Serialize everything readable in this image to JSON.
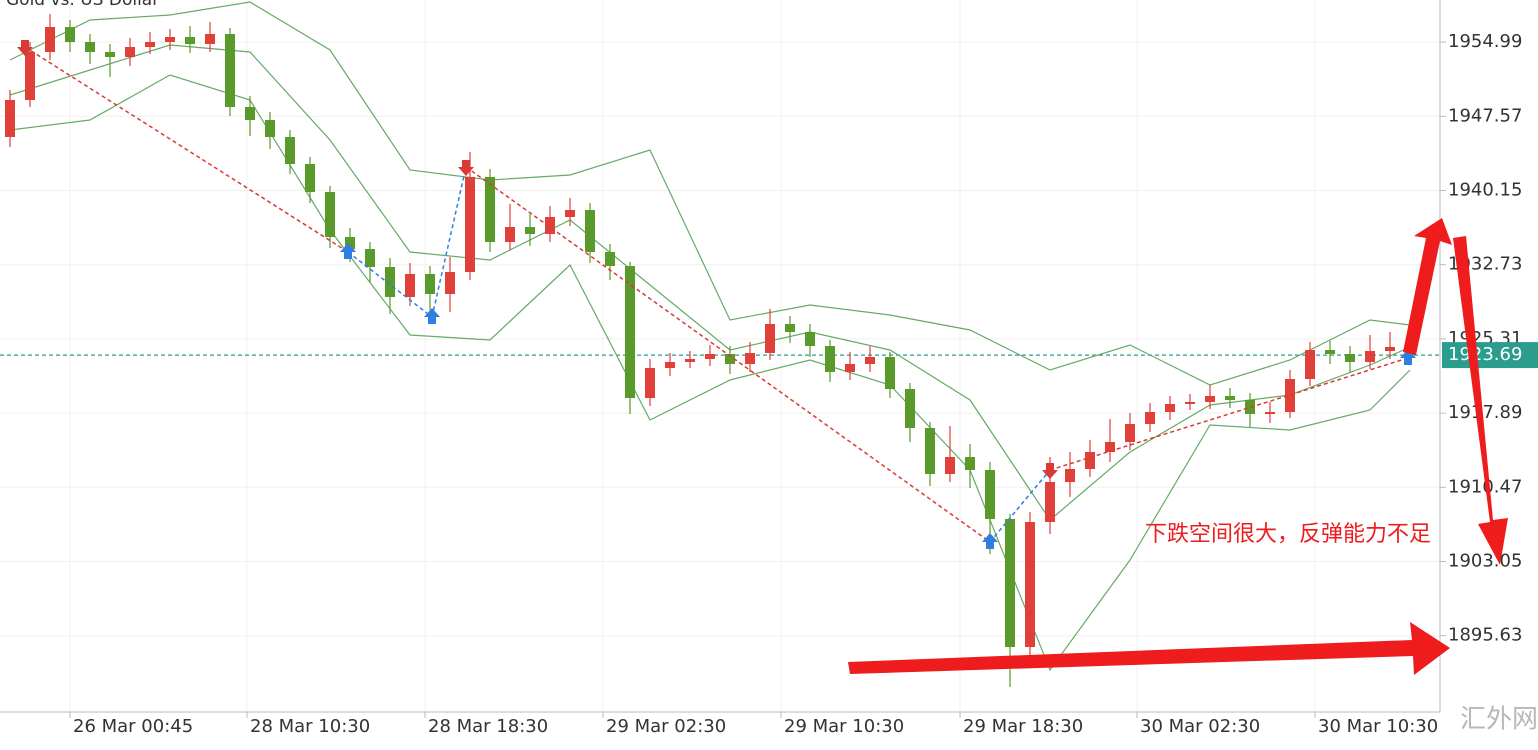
{
  "chart_data": {
    "type": "candlestick",
    "title": "Gold vs. US Dollar",
    "x": [
      0,
      1,
      2,
      3,
      4,
      5,
      6,
      7,
      8,
      9,
      10,
      11,
      12,
      13,
      14,
      15,
      16,
      17,
      18,
      19,
      20,
      21,
      22,
      23,
      24,
      25,
      26,
      27,
      28,
      29,
      30,
      31,
      32,
      33,
      34,
      35,
      36,
      37,
      38,
      39,
      40,
      41,
      42,
      43,
      44,
      45,
      46,
      47,
      48,
      49,
      50,
      51,
      52,
      53,
      54,
      55,
      56,
      57,
      58,
      59,
      60,
      61,
      62,
      63,
      64,
      65,
      66,
      67,
      68,
      69,
      70
    ],
    "open": [
      1945.5,
      1949.2,
      1954.0,
      1956.5,
      1955.0,
      1954.0,
      1953.5,
      1954.5,
      1955.0,
      1955.5,
      1954.8,
      1955.8,
      1948.5,
      1947.2,
      1945.5,
      1942.8,
      1940.0,
      1935.5,
      1934.3,
      1932.5,
      1929.5,
      1931.8,
      1929.8,
      1932.0,
      1941.5,
      1935.0,
      1936.5,
      1935.8,
      1937.5,
      1938.2,
      1934.0,
      1932.6,
      1919.4,
      1922.4,
      1923.0,
      1923.3,
      1923.8,
      1922.8,
      1923.9,
      1926.8,
      1926.0,
      1924.6,
      1922.0,
      1922.8,
      1923.5,
      1920.3,
      1916.4,
      1911.8,
      1913.5,
      1912.2,
      1907.3,
      1894.5,
      1907.0,
      1911.0,
      1912.3,
      1914.0,
      1915.0,
      1916.8,
      1918.0,
      1918.8,
      1919.0,
      1919.6,
      1919.2,
      1917.8,
      1918.0,
      1921.3,
      1924.2,
      1923.8,
      1923.0,
      1924.1,
      1924.5
    ],
    "high": [
      1950.2,
      1955.0,
      1957.8,
      1957.2,
      1955.8,
      1954.8,
      1955.4,
      1956.0,
      1956.3,
      1956.6,
      1957.0,
      1956.4,
      1949.6,
      1948.0,
      1946.2,
      1943.5,
      1940.6,
      1936.4,
      1935.0,
      1933.4,
      1932.9,
      1932.6,
      1933.5,
      1944.0,
      1942.3,
      1938.8,
      1937.8,
      1938.6,
      1939.4,
      1938.9,
      1934.8,
      1933.0,
      1923.3,
      1923.9,
      1924.1,
      1924.7,
      1924.6,
      1925.0,
      1928.3,
      1927.6,
      1926.8,
      1925.2,
      1924.0,
      1924.6,
      1924.0,
      1920.9,
      1917.0,
      1916.6,
      1914.8,
      1913.0,
      1907.8,
      1908.0,
      1913.5,
      1914.0,
      1915.2,
      1917.3,
      1917.9,
      1918.9,
      1919.6,
      1919.8,
      1920.7,
      1920.4,
      1919.9,
      1919.0,
      1922.2,
      1925.0,
      1925.1,
      1924.6,
      1925.7,
      1926.0,
      1927.0
    ],
    "low": [
      1944.5,
      1948.5,
      1953.2,
      1954.0,
      1952.8,
      1951.5,
      1952.6,
      1953.8,
      1954.2,
      1953.9,
      1954.0,
      1947.6,
      1945.6,
      1944.3,
      1941.8,
      1938.9,
      1934.4,
      1933.0,
      1930.9,
      1927.8,
      1928.6,
      1928.2,
      1928.0,
      1931.2,
      1934.0,
      1934.2,
      1934.6,
      1935.0,
      1936.6,
      1932.9,
      1931.2,
      1917.8,
      1918.6,
      1921.6,
      1922.4,
      1922.6,
      1921.8,
      1922.0,
      1923.2,
      1924.9,
      1923.5,
      1921.0,
      1921.2,
      1922.0,
      1919.4,
      1915.0,
      1910.6,
      1911.0,
      1910.4,
      1903.8,
      1890.5,
      1893.0,
      1905.8,
      1909.5,
      1911.5,
      1913.0,
      1914.2,
      1916.0,
      1917.2,
      1918.2,
      1918.3,
      1918.4,
      1916.5,
      1916.9,
      1917.4,
      1920.6,
      1922.8,
      1921.9,
      1922.3,
      1923.3,
      1923.0
    ],
    "close": [
      1949.2,
      1954.0,
      1956.5,
      1955.0,
      1954.0,
      1953.5,
      1954.5,
      1955.0,
      1955.5,
      1954.8,
      1955.8,
      1948.5,
      1947.2,
      1945.5,
      1942.8,
      1940.0,
      1935.5,
      1934.3,
      1932.5,
      1929.5,
      1931.8,
      1929.8,
      1932.0,
      1941.5,
      1935.0,
      1936.5,
      1935.8,
      1937.5,
      1938.2,
      1934.0,
      1932.6,
      1919.4,
      1922.4,
      1923.0,
      1923.3,
      1923.8,
      1922.8,
      1923.9,
      1926.8,
      1926.0,
      1924.6,
      1922.0,
      1922.8,
      1923.5,
      1920.3,
      1916.4,
      1911.8,
      1913.5,
      1912.2,
      1907.3,
      1894.5,
      1907.0,
      1911.0,
      1912.3,
      1914.0,
      1915.0,
      1916.8,
      1918.0,
      1918.8,
      1919.0,
      1919.6,
      1919.2,
      1917.8,
      1918.0,
      1921.3,
      1924.2,
      1923.8,
      1923.0,
      1924.1,
      1924.5,
      1923.7
    ],
    "up_color": "#e0403a",
    "down_color": "#5a9a2a",
    "xlim": [
      -0.5,
      71.5
    ],
    "xticks": [
      {
        "value": 3.0,
        "label": "26 Mar 00:45"
      },
      {
        "value": 11.85,
        "label": "28 Mar 10:30"
      },
      {
        "value": 20.75,
        "label": "28 Mar 18:30"
      },
      {
        "value": 29.65,
        "label": "29 Mar 02:30"
      },
      {
        "value": 38.55,
        "label": "29 Mar 10:30"
      },
      {
        "value": 47.5,
        "label": "29 Mar 18:30"
      },
      {
        "value": 56.35,
        "label": "30 Mar 02:30"
      },
      {
        "value": 65.25,
        "label": "30 Mar 10:30"
      }
    ],
    "ylim": [
      1888.2,
      1959.2
    ],
    "yticks": [
      1954.99,
      1947.57,
      1940.15,
      1932.73,
      1925.31,
      1917.89,
      1910.47,
      1903.05,
      1895.63
    ],
    "grid": true,
    "bands": {
      "color": "#66aa66",
      "x": [
        0,
        4,
        8,
        12,
        16,
        20,
        24,
        28,
        32,
        36,
        40,
        44,
        48,
        52,
        56,
        60,
        64,
        68,
        70
      ],
      "upper": [
        1953.2,
        1957.2,
        1957.7,
        1959.0,
        1954.2,
        1942.2,
        1941.2,
        1941.7,
        1944.2,
        1927.2,
        1928.7,
        1927.7,
        1926.2,
        1922.2,
        1924.7,
        1920.7,
        1923.2,
        1927.2,
        1926.7
      ],
      "middle": [
        1949.7,
        1952.2,
        1954.7,
        1954.0,
        1945.2,
        1934.0,
        1933.2,
        1937.2,
        1930.7,
        1924.2,
        1926.0,
        1924.2,
        1919.2,
        1907.2,
        1914.0,
        1918.7,
        1919.7,
        1922.7,
        1924.5
      ],
      "lower": [
        1946.2,
        1947.2,
        1951.7,
        1949.2,
        1936.2,
        1925.7,
        1925.2,
        1932.7,
        1917.2,
        1921.2,
        1923.2,
        1920.7,
        1912.2,
        1892.2,
        1903.2,
        1916.7,
        1916.2,
        1918.2,
        1922.2
      ]
    },
    "signals": {
      "x": [
        0.75,
        16.9,
        21.1,
        22.8,
        49,
        52,
        69.9
      ],
      "y": [
        1954.5,
        1934.0,
        1927.5,
        1942.5,
        1905.0,
        1912.2,
        1923.4
      ],
      "kind": [
        "sell",
        "buy",
        "buy",
        "sell",
        "buy",
        "sell",
        "buy"
      ],
      "buy_color": "#2f7fe0",
      "sell_color": "#d93a35"
    },
    "last_price": 1923.69,
    "last_price_color": "#2a9d8f",
    "annotation": "下跌空间很大，反弹能力不足",
    "watermark": "汇外网"
  }
}
